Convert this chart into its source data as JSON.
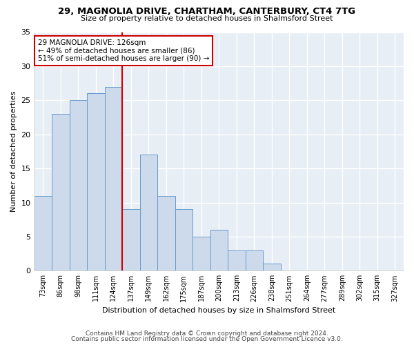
{
  "title1": "29, MAGNOLIA DRIVE, CHARTHAM, CANTERBURY, CT4 7TG",
  "title2": "Size of property relative to detached houses in Shalmsford Street",
  "xlabel": "Distribution of detached houses by size in Shalmsford Street",
  "ylabel": "Number of detached properties",
  "categories": [
    "73sqm",
    "86sqm",
    "98sqm",
    "111sqm",
    "124sqm",
    "137sqm",
    "149sqm",
    "162sqm",
    "175sqm",
    "187sqm",
    "200sqm",
    "213sqm",
    "226sqm",
    "238sqm",
    "251sqm",
    "264sqm",
    "277sqm",
    "289sqm",
    "302sqm",
    "315sqm",
    "327sqm"
  ],
  "values": [
    11,
    23,
    25,
    26,
    27,
    9,
    17,
    11,
    9,
    5,
    6,
    3,
    3,
    1,
    0,
    0,
    0,
    0,
    0,
    0,
    0
  ],
  "bar_color": "#cddaeb",
  "bar_edge_color": "#6699cc",
  "vline_x": 4.5,
  "vline_color": "#cc0000",
  "annotation_text": "29 MAGNOLIA DRIVE: 126sqm\n← 49% of detached houses are smaller (86)\n51% of semi-detached houses are larger (90) →",
  "annotation_box_color": "#ffffff",
  "annotation_box_edge": "#cc0000",
  "ylim": [
    0,
    35
  ],
  "yticks": [
    0,
    5,
    10,
    15,
    20,
    25,
    30,
    35
  ],
  "footer1": "Contains HM Land Registry data © Crown copyright and database right 2024.",
  "footer2": "Contains public sector information licensed under the Open Government Licence v3.0.",
  "fig_background": "#ffffff",
  "plot_background": "#e8eef5"
}
